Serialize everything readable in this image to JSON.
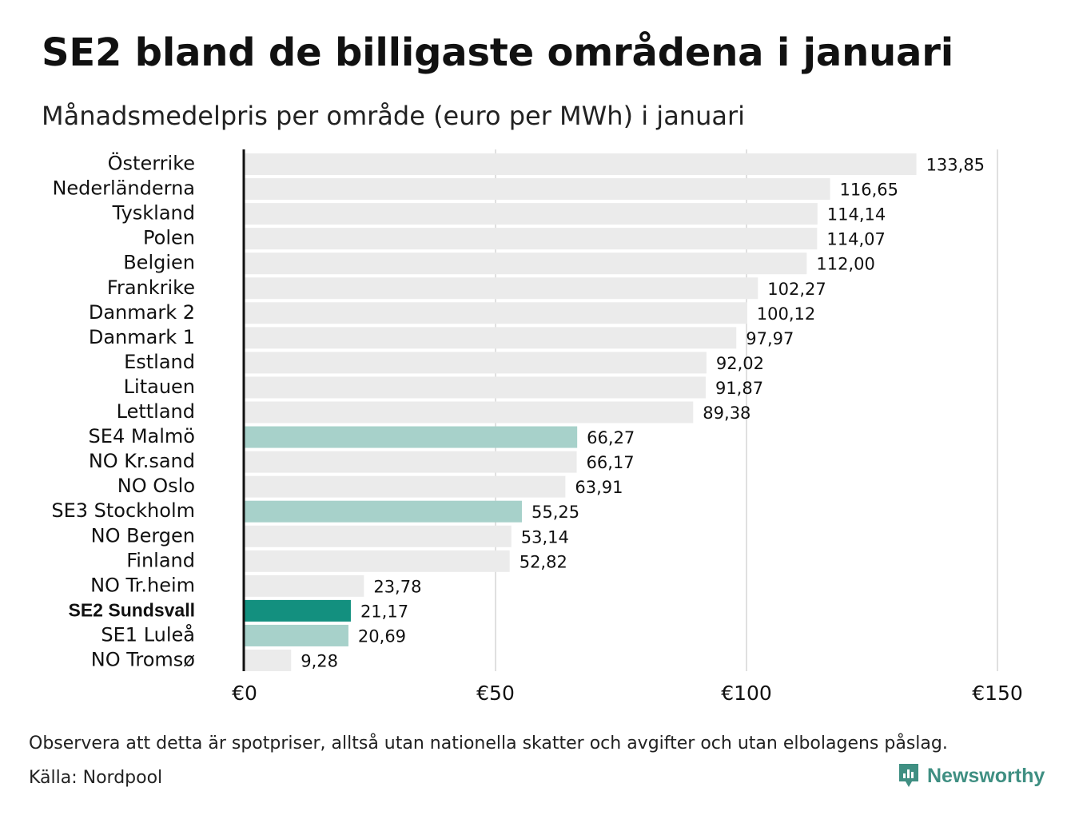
{
  "title": "SE2 bland de billigaste områdena i januari",
  "subtitle": "Månadsmedelpris per område (euro per MWh) i januari",
  "footnote": "Observera att detta är spotpriser, alltså utan nationella skatter och avgifter och utan elbolagens påslag.",
  "source": "Källa: Nordpool",
  "logo_text": "Newsworthy",
  "colors": {
    "default_bar": "#ebebeb",
    "swedish_bar": "#a7d1ca",
    "highlight_bar": "#13907f",
    "gridline": "#d6d6d6",
    "axis": "#111111",
    "logo": "#3f8f82"
  },
  "chart_data": {
    "type": "bar",
    "orientation": "horizontal",
    "categories": [
      "Österrike",
      "Nederländerna",
      "Tyskland",
      "Polen",
      "Belgien",
      "Frankrike",
      "Danmark  2",
      "Danmark  1",
      "Estland",
      "Litauen",
      "Lettland",
      "SE4  Malmö",
      "NO Kr.sand",
      "NO Oslo",
      "SE3  Stockholm",
      "NO Bergen",
      "Finland",
      "NO Tr.heim",
      "SE2 Sundsvall",
      "SE1  Luleå",
      "NO Tromsø"
    ],
    "values": [
      133.85,
      116.65,
      114.14,
      114.07,
      112.0,
      102.27,
      100.12,
      97.97,
      92.02,
      91.87,
      89.38,
      66.27,
      66.17,
      63.91,
      55.25,
      53.14,
      52.82,
      23.78,
      21.17,
      20.69,
      9.28
    ],
    "value_labels": [
      "133,85",
      "116,65",
      "114,14",
      "114,07",
      "112,00",
      "102,27",
      "100,12",
      "97,97",
      "92,02",
      "91,87",
      "89,38",
      "66,27",
      "66,17",
      "63,91",
      "55,25",
      "53,14",
      "52,82",
      "23,78",
      "21,17",
      "20,69",
      "9,28"
    ],
    "bar_style": [
      "default",
      "default",
      "default",
      "default",
      "default",
      "default",
      "default",
      "default",
      "default",
      "default",
      "default",
      "swedish",
      "default",
      "default",
      "swedish",
      "default",
      "default",
      "default",
      "highlight",
      "swedish",
      "default"
    ],
    "x_ticks": [
      0,
      50,
      100,
      150
    ],
    "x_tick_labels": [
      "€0",
      "€50",
      "€100",
      "€150"
    ],
    "xlim": [
      0,
      150
    ],
    "grid": true
  }
}
